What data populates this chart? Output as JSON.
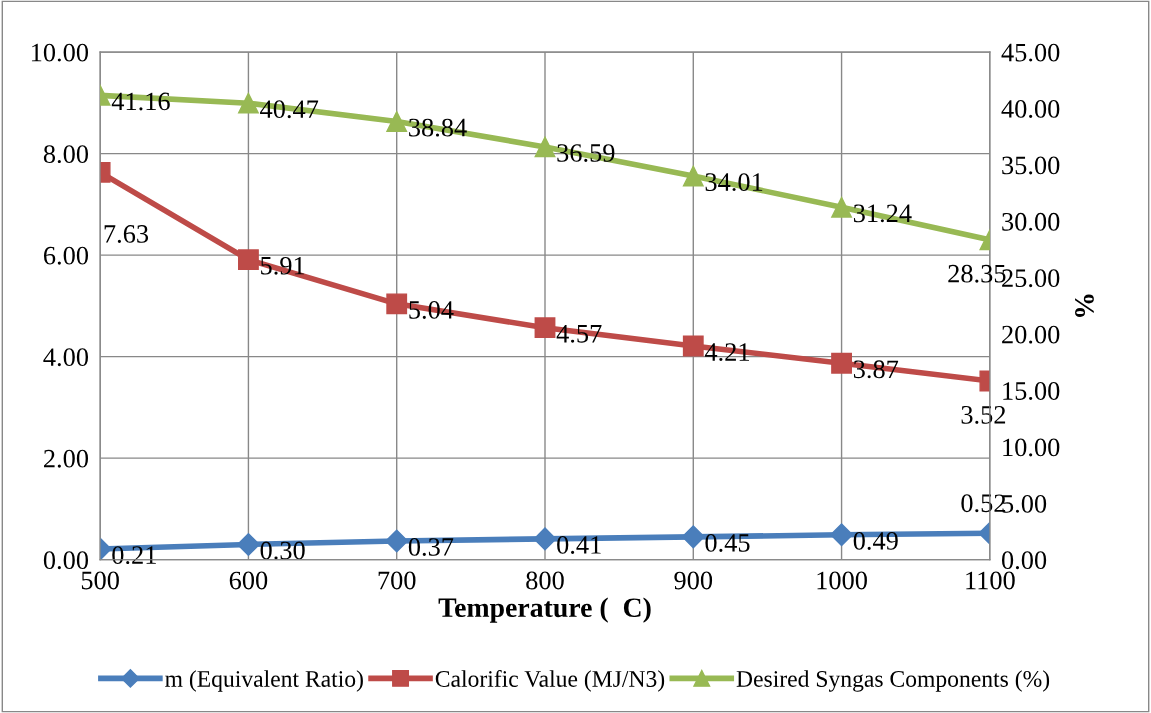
{
  "chart_data": {
    "type": "line",
    "xlabel": "Temperature (  C)",
    "y2label": "%",
    "x": [
      500,
      600,
      700,
      800,
      900,
      1000,
      1100
    ],
    "xlim": [
      500,
      1100
    ],
    "xticks": [
      500,
      600,
      700,
      800,
      900,
      1000,
      1100
    ],
    "ylim": [
      0,
      10
    ],
    "yticks": [
      {
        "value": 0,
        "label": "0.00"
      },
      {
        "value": 2,
        "label": "2.00"
      },
      {
        "value": 4,
        "label": "4.00"
      },
      {
        "value": 6,
        "label": "6.00"
      },
      {
        "value": 8,
        "label": "8.00"
      },
      {
        "value": 10,
        "label": "10.00"
      }
    ],
    "y2lim": [
      0,
      45
    ],
    "y2ticks": [
      {
        "value": 0,
        "label": "0.00"
      },
      {
        "value": 5,
        "label": "5.00"
      },
      {
        "value": 10,
        "label": "10.00"
      },
      {
        "value": 15,
        "label": "15.00"
      },
      {
        "value": 20,
        "label": "20.00"
      },
      {
        "value": 25,
        "label": "25.00"
      },
      {
        "value": 30,
        "label": "30.00"
      },
      {
        "value": 35,
        "label": "35.00"
      },
      {
        "value": 40,
        "label": "40.00"
      },
      {
        "value": 45,
        "label": "45.00"
      }
    ],
    "grid": true,
    "legend": "bottom",
    "line_style": "solid",
    "series": [
      {
        "name": "m (Equivalent Ratio)",
        "color": "#4a7ebb",
        "marker": "diamond",
        "values": [
          0.21,
          0.3,
          0.37,
          0.41,
          0.45,
          0.49,
          0.52
        ],
        "value_labels": [
          "0.21",
          "0.30",
          "0.37",
          "0.41",
          "0.45",
          "0.49",
          "0.52"
        ]
      },
      {
        "name": "Calorific Value (MJ/N3)",
        "color": "#be4b48",
        "marker": "square",
        "values": [
          7.63,
          5.91,
          5.04,
          4.57,
          4.21,
          3.87,
          3.52
        ],
        "value_labels": [
          "7.63",
          "5.91",
          "5.04",
          "4.57",
          "4.21",
          "3.87",
          "3.52"
        ]
      },
      {
        "name": "Desired Syngas Components (%)",
        "color": "#98b954",
        "marker": "triangle",
        "axis": "y2",
        "values": [
          41.16,
          40.47,
          38.84,
          36.59,
          34.01,
          31.24,
          28.35
        ],
        "value_labels": [
          "41.16",
          "40.47",
          "38.84",
          "36.59",
          "34.01",
          "31.24",
          "28.35"
        ]
      }
    ]
  }
}
